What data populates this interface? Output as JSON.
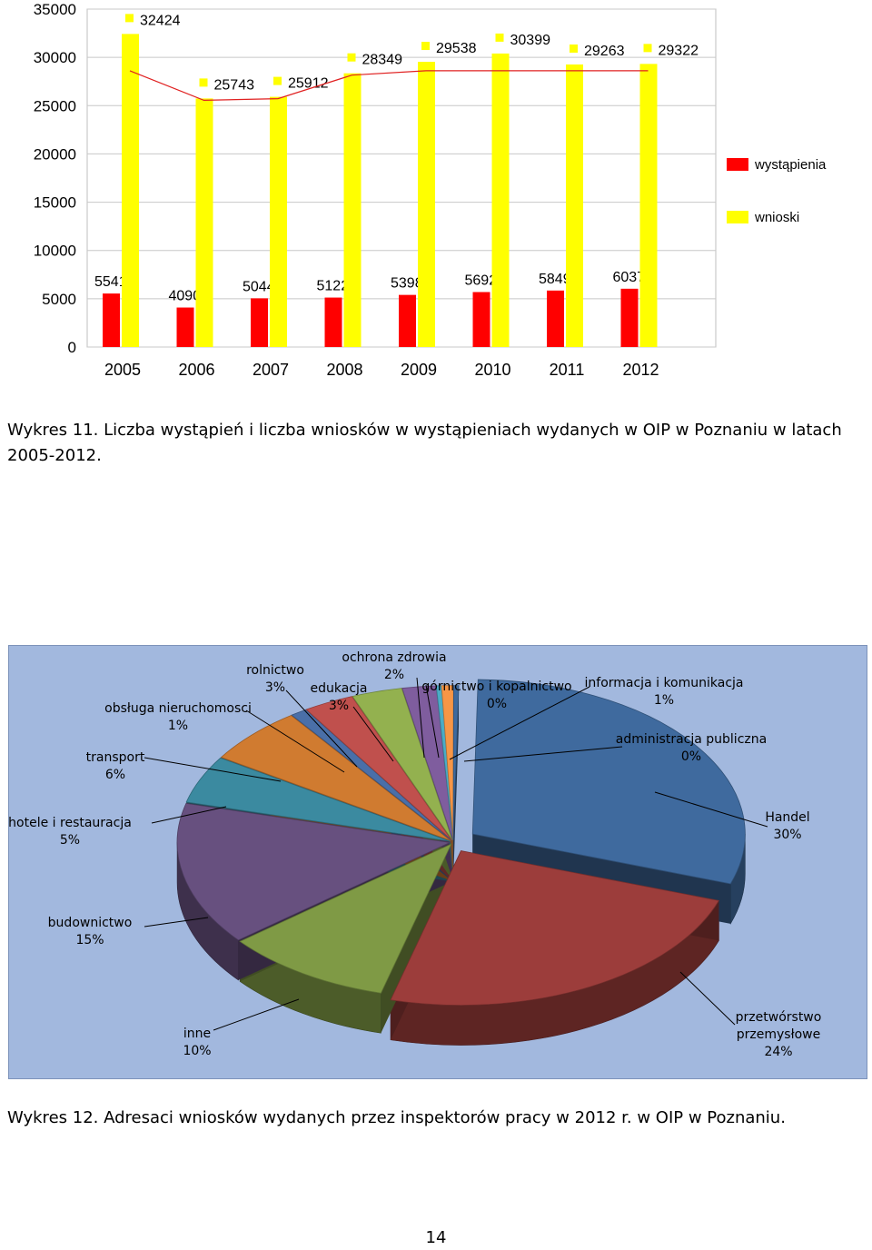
{
  "chart_data": [
    {
      "type": "bar",
      "title": "",
      "xlabel": "",
      "ylabel": "",
      "ylim": [
        0,
        35000
      ],
      "yticks": [
        0,
        5000,
        10000,
        15000,
        20000,
        25000,
        30000,
        35000
      ],
      "grid": true,
      "legend_position": "right",
      "categories": [
        "2005",
        "2006",
        "2007",
        "2008",
        "2009",
        "2010",
        "2011",
        "2012"
      ],
      "series": [
        {
          "name": "wystąpienia",
          "color": "#ff0000",
          "values": [
            5541,
            4090,
            5044,
            5122,
            5398,
            5692,
            5849,
            6037
          ]
        },
        {
          "name": "wnioski",
          "color": "#ffff00",
          "values": [
            32424,
            25743,
            25912,
            28349,
            29538,
            30399,
            29263,
            29322
          ]
        }
      ]
    },
    {
      "type": "pie",
      "title": "",
      "background": "#a2b8de",
      "slices": [
        {
          "label": "Handel",
          "value": 30,
          "percent": "30%",
          "color": "#3f6a9e"
        },
        {
          "label": "przetwórstwo przemysłowe",
          "value": 24,
          "percent": "24%",
          "color": "#9c3d3b"
        },
        {
          "label": "inne",
          "value": 10,
          "percent": "10%",
          "color": "#7f9a45"
        },
        {
          "label": "budownictwo",
          "value": 15,
          "percent": "15%",
          "color": "#67507f"
        },
        {
          "label": "hotele i restauracja",
          "value": 5,
          "percent": "5%",
          "color": "#3b8aa0"
        },
        {
          "label": "transport",
          "value": 6,
          "percent": "6%",
          "color": "#d07b30"
        },
        {
          "label": "obsługa nieruchomosci",
          "value": 1,
          "percent": "1%",
          "color": "#4a6fa8"
        },
        {
          "label": "rolnictwo",
          "value": 3,
          "percent": "3%",
          "color": "#c0504d"
        },
        {
          "label": "edukacja",
          "value": 3,
          "percent": "3%",
          "color": "#93b14f"
        },
        {
          "label": "ochrona zdrowia",
          "value": 2,
          "percent": "2%",
          "color": "#7f5d9e"
        },
        {
          "label": "górnictwo i kopalnictwo",
          "value": 0.3,
          "percent": "0%",
          "color": "#4bacc6"
        },
        {
          "label": "informacja i komunikacja",
          "value": 0.7,
          "percent": "1%",
          "color": "#f79646"
        },
        {
          "label": "administracja publiczna",
          "value": 0.3,
          "percent": "0%",
          "color": "#3f6a9e"
        }
      ]
    }
  ],
  "captions": {
    "figure_11": "Wykres 11. Liczba wystąpień i liczba wniosków w wystąpieniach wydanych w OIP w Poznaniu w latach 2005-2012.",
    "figure_12": "Wykres 12. Adresaci wniosków wydanych przez inspektorów pracy w 2012 r. w OIP w Poznaniu."
  },
  "page_number": "14"
}
